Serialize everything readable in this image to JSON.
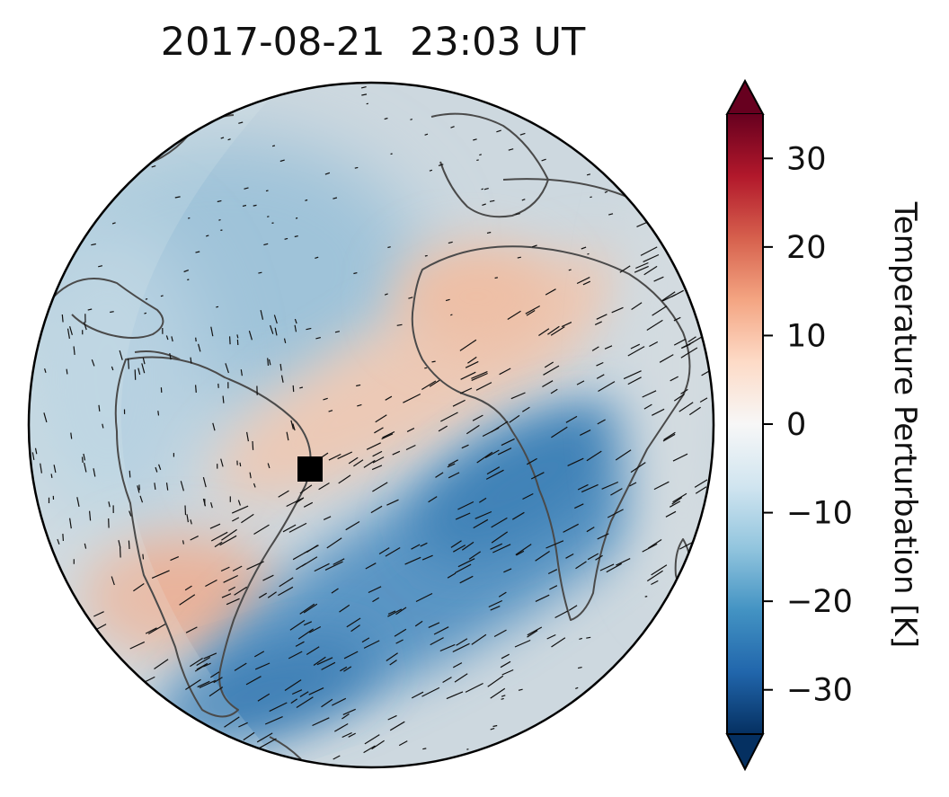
{
  "map": {
    "title": "2017-08-21  23:03 UT",
    "projection": "orthographic",
    "center_marker": "black-square",
    "overlay": "gravity-wave-wind-ticks",
    "coastlines": true
  },
  "colorbar": {
    "label": "Temperature Perturbation [K]",
    "ticks": [
      "30",
      "20",
      "10",
      "0",
      "−10",
      "−20",
      "−30"
    ],
    "tick_values": [
      30,
      20,
      10,
      0,
      -10,
      -20,
      -30
    ],
    "range": [
      -35,
      35
    ],
    "extend": "both",
    "colormap": "RdBu_r",
    "stops": [
      "#053061",
      "#2166ac",
      "#4393c3",
      "#92c5de",
      "#d1e5f0",
      "#f7f7f7",
      "#fddbc7",
      "#f4a582",
      "#d6604d",
      "#b2182b",
      "#67001f"
    ]
  },
  "colors": {
    "ocean_base": "#c9d6de",
    "cold": "#3a7fb5",
    "warm": "#e9b49c",
    "coastline": "#4a4a4a"
  }
}
